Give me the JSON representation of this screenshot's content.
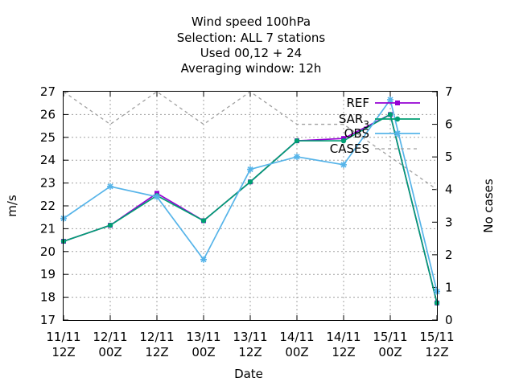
{
  "chart_data": {
    "type": "line",
    "title_lines": [
      "Wind speed 100hPa",
      "Selection: ALL      7 stations",
      "Used  00,12  + 24",
      "Averaging window: 12h"
    ],
    "xlabel": "Date",
    "ylabel": "m/s",
    "y2label": "No cases",
    "categories": [
      [
        "11/11",
        "12Z"
      ],
      [
        "12/11",
        "00Z"
      ],
      [
        "12/11",
        "12Z"
      ],
      [
        "13/11",
        "00Z"
      ],
      [
        "13/11",
        "12Z"
      ],
      [
        "14/11",
        "00Z"
      ],
      [
        "14/11",
        "12Z"
      ],
      [
        "15/11",
        "00Z"
      ],
      [
        "15/11",
        "12Z"
      ]
    ],
    "ylim": [
      17,
      27
    ],
    "yticks": [
      "17",
      "18",
      "19",
      "20",
      "21",
      "22",
      "23",
      "24",
      "25",
      "26",
      "27"
    ],
    "y2lim": [
      0,
      7
    ],
    "y2ticks": [
      "0",
      "1",
      "2",
      "3",
      "4",
      "5",
      "6",
      "7"
    ],
    "grid": true,
    "legend_position": "top-right",
    "series": [
      {
        "name": "REF",
        "axis": "y",
        "color": "#9400d3",
        "marker": "square",
        "dash": "",
        "values": [
          20.45,
          21.15,
          22.55,
          21.35,
          23.05,
          24.85,
          24.95,
          26.0,
          17.75
        ]
      },
      {
        "name": "SAR_3",
        "name_main": "SAR",
        "name_sub": "3",
        "axis": "y",
        "color": "#009e73",
        "marker": "circle",
        "dash": "",
        "values": [
          20.45,
          21.15,
          22.45,
          21.35,
          23.05,
          24.85,
          24.85,
          26.0,
          17.75
        ]
      },
      {
        "name": "OBS",
        "axis": "y",
        "color": "#56b4e9",
        "marker": "star",
        "dash": "",
        "values": [
          21.45,
          22.85,
          22.4,
          19.65,
          23.6,
          24.15,
          23.8,
          26.65,
          18.25
        ]
      },
      {
        "name": "CASES",
        "axis": "y2",
        "color": "#a0a0a0",
        "marker": "none",
        "dash": "4,4",
        "values": [
          7,
          6,
          7,
          6,
          7,
          6,
          6,
          5,
          4
        ]
      }
    ]
  }
}
